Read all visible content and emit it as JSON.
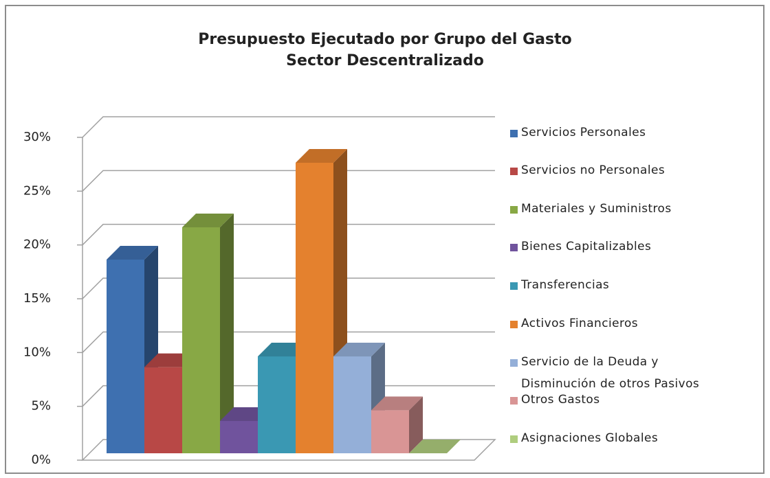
{
  "chart_data": {
    "type": "bar3d",
    "title": "Presupuesto Ejecutado por Grupo del Gasto",
    "subtitle": "Sector Descentralizado",
    "series": [
      {
        "name": "Servicios Personales",
        "color": "#3e70b0",
        "values": [
          18
        ]
      },
      {
        "name": "Servicios no Personales",
        "color": "#b84846",
        "values": [
          8
        ]
      },
      {
        "name": "Materiales y Suministros",
        "color": "#88a845",
        "values": [
          21
        ]
      },
      {
        "name": "Bienes Capitalizables",
        "color": "#70539d",
        "values": [
          3
        ]
      },
      {
        "name": "Transferencias",
        "color": "#3a98b3",
        "values": [
          9
        ]
      },
      {
        "name": "Activos Financieros",
        "color": "#e4812e",
        "values": [
          27
        ]
      },
      {
        "name": "Servicio de la Deuda y Disminución de otros Pasivos",
        "color": "#94afd8",
        "values": [
          9
        ]
      },
      {
        "name": "Otros Gastos",
        "color": "#d99595",
        "values": [
          4
        ]
      },
      {
        "name": "Asignaciones Globales",
        "color": "#afcd7e",
        "values": [
          0
        ]
      }
    ],
    "ylim": [
      0,
      30
    ],
    "yticks": [
      {
        "value": 0,
        "label": "0%"
      },
      {
        "value": 5,
        "label": "5%"
      },
      {
        "value": 10,
        "label": "10%"
      },
      {
        "value": 15,
        "label": "15%"
      },
      {
        "value": 20,
        "label": "20%"
      },
      {
        "value": 25,
        "label": "25%"
      },
      {
        "value": 30,
        "label": "30%"
      }
    ],
    "grid": true,
    "legend": "right"
  }
}
